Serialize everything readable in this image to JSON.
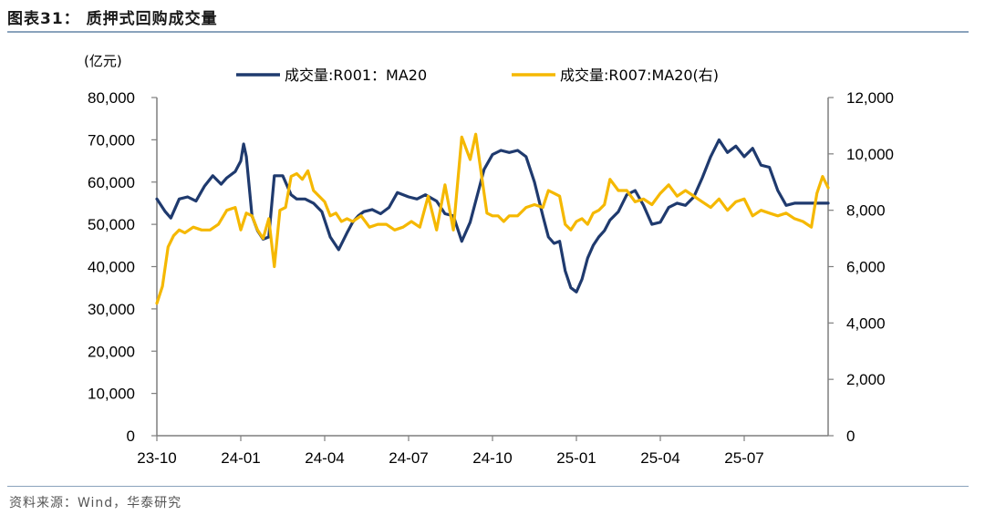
{
  "figure": {
    "title": "图表31：  质押式回购成交量",
    "source": "资料来源：Wind，华泰研究"
  },
  "chart_data": {
    "type": "line",
    "title": "质押式回购成交量",
    "left_axis": {
      "unit": "(亿元)",
      "range": [
        0,
        80000
      ],
      "ticks": [
        "0",
        "10,000",
        "20,000",
        "30,000",
        "40,000",
        "50,000",
        "60,000",
        "70,000",
        "80,000"
      ]
    },
    "right_axis": {
      "range": [
        0,
        12000
      ],
      "ticks": [
        "0",
        "2,000",
        "4,000",
        "6,000",
        "8,000",
        "10,000",
        "12,000"
      ]
    },
    "x_axis": {
      "range_months": [
        0,
        24
      ],
      "tick_labels": [
        "23-10",
        "24-01",
        "24-04",
        "24-07",
        "24-10",
        "25-01",
        "25-04",
        "25-07"
      ],
      "tick_positions": [
        0,
        3,
        6,
        9,
        12,
        15,
        18,
        21
      ]
    },
    "grid": false,
    "legend_position": "top",
    "series": [
      {
        "name": "成交量:R001：MA20",
        "axis": "left",
        "color": "#1f3a6e",
        "x": [
          0,
          0.3,
          0.5,
          0.8,
          1.1,
          1.4,
          1.7,
          2.0,
          2.3,
          2.5,
          2.8,
          3.0,
          3.1,
          3.2,
          3.4,
          3.6,
          3.8,
          4.0,
          4.2,
          4.5,
          4.8,
          5.0,
          5.3,
          5.6,
          5.9,
          6.2,
          6.5,
          6.8,
          7.0,
          7.2,
          7.4,
          7.7,
          8.0,
          8.3,
          8.6,
          9.0,
          9.3,
          9.6,
          10.0,
          10.3,
          10.6,
          10.9,
          11.2,
          11.5,
          11.7,
          12.0,
          12.3,
          12.6,
          12.9,
          13.2,
          13.5,
          13.8,
          14.0,
          14.2,
          14.4,
          14.6,
          14.8,
          15.0,
          15.2,
          15.4,
          15.6,
          15.8,
          16.0,
          16.2,
          16.5,
          16.8,
          17.1,
          17.4,
          17.7,
          18.0,
          18.3,
          18.6,
          18.9,
          19.2,
          19.5,
          19.8,
          20.1,
          20.4,
          20.7,
          21.0,
          21.3,
          21.6,
          21.9,
          22.2,
          22.5,
          22.8,
          23.1,
          23.4,
          23.7,
          24.0
        ],
        "values": [
          56000,
          53000,
          51500,
          56000,
          56500,
          55500,
          59000,
          61500,
          59500,
          61000,
          62500,
          65000,
          69000,
          66000,
          52000,
          48500,
          46500,
          47000,
          61500,
          61500,
          57000,
          56000,
          56000,
          55000,
          53000,
          47000,
          44000,
          48000,
          50500,
          52000,
          53000,
          53500,
          52500,
          54000,
          57500,
          56500,
          56000,
          57000,
          55500,
          52500,
          52000,
          46000,
          50500,
          58000,
          63000,
          66500,
          67500,
          67000,
          67500,
          66000,
          60000,
          52000,
          47000,
          45500,
          46000,
          39000,
          35000,
          34000,
          37000,
          42000,
          45000,
          47000,
          48500,
          51000,
          53000,
          57000,
          58000,
          54500,
          50000,
          50500,
          54000,
          55000,
          54500,
          56500,
          61000,
          66000,
          70000,
          67000,
          68500,
          66000,
          68000,
          64000,
          63500,
          58000,
          54500,
          55000,
          55000,
          55000,
          55000,
          55000
        ],
        "values_note": "values after index 83 extend to end of range"
      },
      {
        "name": "成交量:R007:MA20(右)",
        "axis": "right",
        "color": "#f5b800",
        "x": [
          0,
          0.2,
          0.4,
          0.6,
          0.8,
          1.0,
          1.3,
          1.6,
          1.9,
          2.2,
          2.5,
          2.8,
          3.0,
          3.2,
          3.4,
          3.6,
          3.8,
          4.0,
          4.2,
          4.4,
          4.6,
          4.8,
          5.0,
          5.2,
          5.4,
          5.6,
          5.8,
          6.0,
          6.2,
          6.4,
          6.6,
          6.8,
          7.0,
          7.3,
          7.6,
          7.9,
          8.2,
          8.5,
          8.8,
          9.1,
          9.4,
          9.7,
          10.0,
          10.3,
          10.6,
          10.9,
          11.2,
          11.4,
          11.6,
          11.8,
          12.0,
          12.2,
          12.4,
          12.6,
          12.9,
          13.2,
          13.5,
          13.8,
          14.0,
          14.2,
          14.4,
          14.6,
          14.8,
          15.0,
          15.2,
          15.4,
          15.6,
          15.8,
          16.0,
          16.2,
          16.5,
          16.8,
          17.1,
          17.4,
          17.7,
          18.0,
          18.3,
          18.6,
          18.9,
          19.2,
          19.5,
          19.8,
          20.1,
          20.4,
          20.7,
          21.0,
          21.3,
          21.6,
          21.9,
          22.2,
          22.5,
          22.8,
          23.1,
          23.4,
          23.6,
          23.8,
          24.0
        ],
        "values": [
          4700,
          5300,
          6700,
          7100,
          7300,
          7200,
          7400,
          7300,
          7300,
          7500,
          8000,
          8100,
          7300,
          7900,
          7800,
          7300,
          7000,
          7700,
          6000,
          8000,
          8100,
          9200,
          9300,
          9100,
          9400,
          8700,
          8500,
          8300,
          7800,
          7900,
          7600,
          7700,
          7600,
          7800,
          7400,
          7500,
          7500,
          7300,
          7400,
          7600,
          7400,
          8500,
          7300,
          8900,
          7300,
          10600,
          9800,
          10700,
          9300,
          7900,
          7800,
          7800,
          7600,
          7800,
          7800,
          8100,
          8200,
          8100,
          8700,
          8600,
          8500,
          7500,
          7300,
          7600,
          7700,
          7500,
          7900,
          8000,
          8200,
          9100,
          8700,
          8700,
          8300,
          8400,
          8200,
          8600,
          8900,
          8500,
          8700,
          8500,
          8300,
          8100,
          8400,
          8000,
          8300,
          8400,
          7800,
          8000,
          7900,
          7800,
          7900,
          7700,
          7600,
          7400,
          8600,
          9200,
          8800
        ],
        "values_note": "estimated from chart"
      }
    ]
  }
}
